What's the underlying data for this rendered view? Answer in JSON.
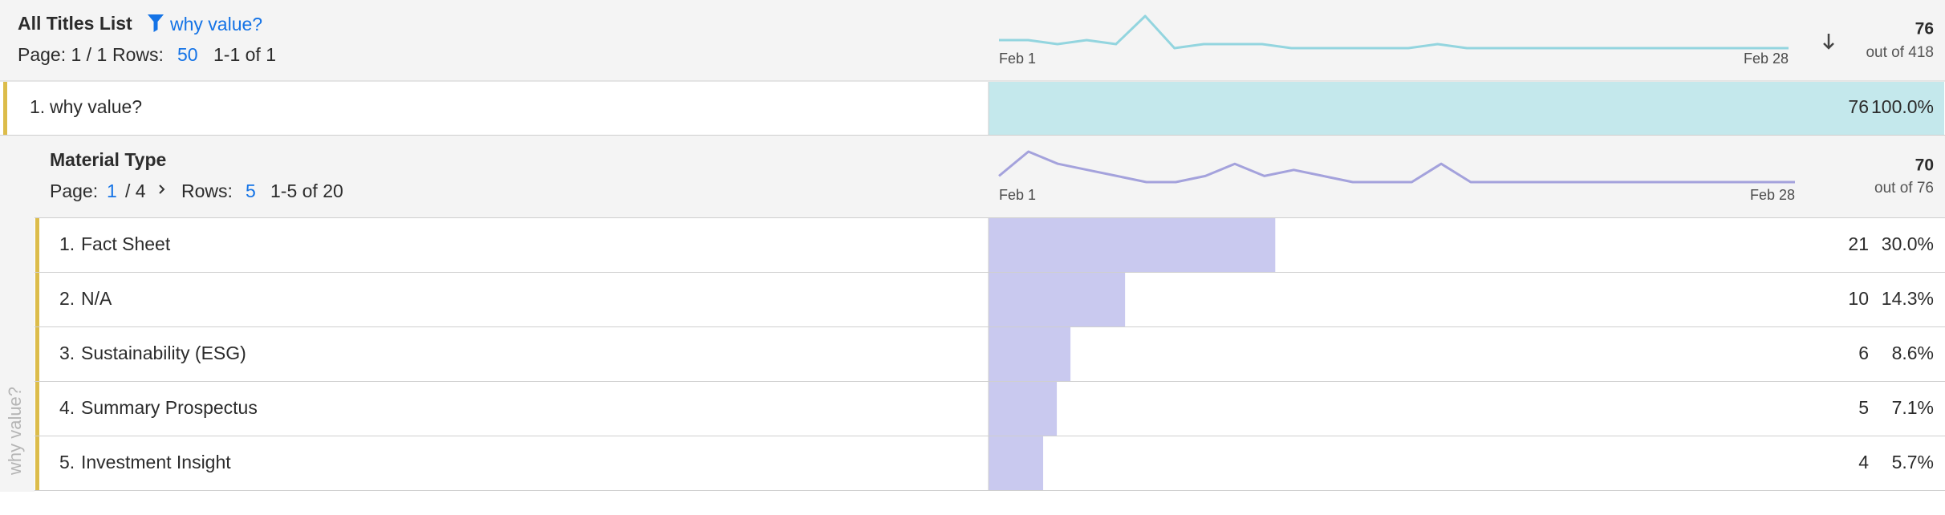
{
  "header": {
    "title": "All Titles List",
    "filter": "why value?",
    "page": "Page: 1 / 1",
    "rows_label": "Rows:",
    "rows": "50",
    "range": "1-1 of 1",
    "sparkline": [
      3,
      3,
      2,
      3,
      2,
      9,
      1,
      2,
      2,
      2,
      1,
      1,
      1,
      1,
      1,
      2,
      1,
      1,
      1,
      1,
      1,
      1,
      1,
      1,
      1,
      1,
      1,
      1
    ],
    "start_date": "Feb 1",
    "end_date": "Feb 28",
    "total": 76,
    "out_of": "out of 418"
  },
  "row": {
    "index": "1.",
    "name": "why value?",
    "count": 76,
    "percent": "100.0%"
  },
  "breakdown": {
    "side_label": "why value?",
    "title": "Material Type",
    "page_label": "Page:",
    "page_current": "1",
    "page_total": "/ 4",
    "rows_label": "Rows:",
    "rows": "5",
    "range": "1-5 of 20",
    "sparkline": [
      1,
      5,
      3,
      2,
      1,
      0,
      0,
      1,
      3,
      1,
      2,
      1,
      0,
      0,
      0,
      3,
      0,
      0,
      0,
      0,
      0,
      0,
      0,
      0,
      0,
      0,
      0,
      0
    ],
    "start_date": "Feb 1",
    "end_date": "Feb 28",
    "total": 70,
    "out_of": "out of 76",
    "items": [
      {
        "index": "1.",
        "name": "Fact Sheet",
        "count": 21,
        "percent": "30.0%"
      },
      {
        "index": "2.",
        "name": "N/A",
        "count": 10,
        "percent": "14.3%"
      },
      {
        "index": "3.",
        "name": "Sustainability (ESG)",
        "count": 6,
        "percent": "8.6%"
      },
      {
        "index": "4.",
        "name": "Summary Prospectus",
        "count": 5,
        "percent": "7.1%"
      },
      {
        "index": "5.",
        "name": "Investment Insight",
        "count": 4,
        "percent": "5.7%"
      }
    ]
  }
}
